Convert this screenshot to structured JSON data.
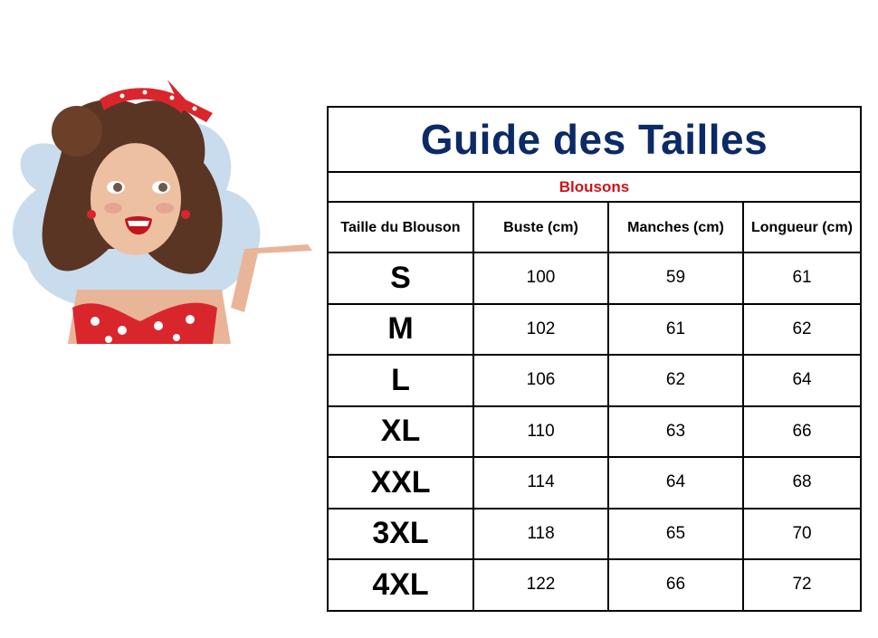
{
  "illustration": {
    "description_icon": "pinup-woman-presenting-illustration"
  },
  "table": {
    "title": "Guide des Tailles",
    "subtitle": "Blousons",
    "headers": [
      "Taille du Blouson",
      "Buste (cm)",
      "Manches (cm)",
      "Longueur (cm)"
    ],
    "rows": [
      [
        "S",
        "100",
        "59",
        "61"
      ],
      [
        "M",
        "102",
        "61",
        "62"
      ],
      [
        "L",
        "106",
        "62",
        "64"
      ],
      [
        "XL",
        "110",
        "63",
        "66"
      ],
      [
        "XXL",
        "114",
        "64",
        "68"
      ],
      [
        "3XL",
        "118",
        "65",
        "70"
      ],
      [
        "4XL",
        "122",
        "66",
        "72"
      ]
    ]
  },
  "colors": {
    "title": "#0b2a66",
    "subtitle": "#d0121b"
  }
}
